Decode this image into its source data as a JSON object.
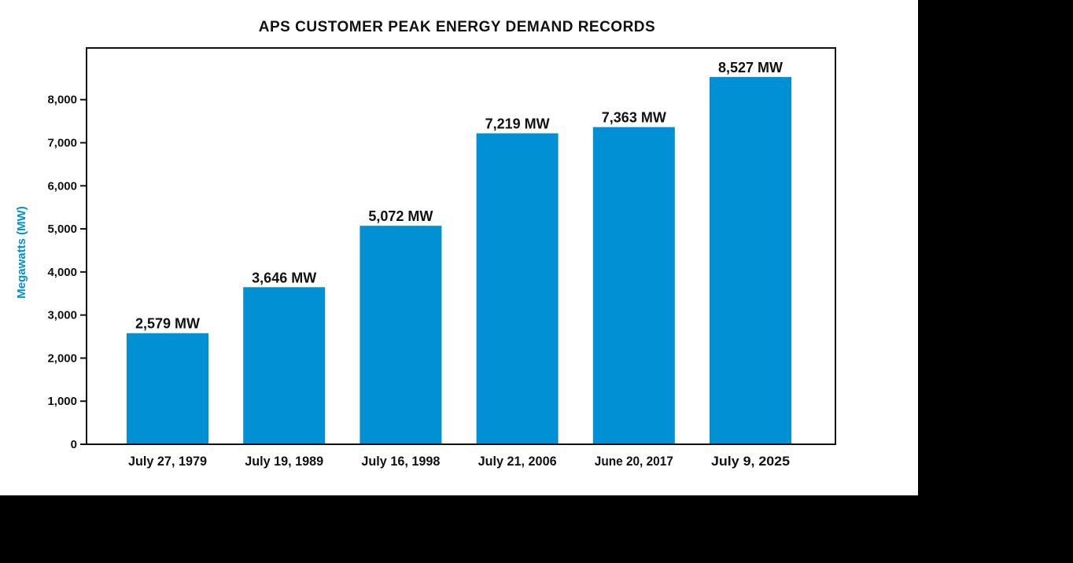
{
  "chart_data": {
    "type": "bar",
    "title": "APS CUSTOMER PEAK ENERGY DEMAND RECORDS",
    "xlabel": "",
    "ylabel": "Megawatts (MW)",
    "categories": [
      "July 27, 1979",
      "July 19, 1989",
      "July 16, 1998",
      "July 21, 2006",
      "June 20, 2017",
      "July 9, 2025"
    ],
    "values": [
      2579,
      3646,
      5072,
      7219,
      7363,
      8527
    ],
    "data_labels": [
      "2,579 MW",
      "3,646 MW",
      "5,072 MW",
      "7,219 MW",
      "7,363 MW",
      "8,527 MW"
    ],
    "yticks": [
      0,
      1000,
      2000,
      3000,
      4000,
      5000,
      6000,
      7000,
      8000
    ],
    "ytick_labels": [
      "0",
      "1,000",
      "2,000",
      "3,000",
      "4,000",
      "5,000",
      "6,000",
      "7,000",
      "8,000"
    ],
    "ylim": [
      0,
      9200
    ],
    "grid": false,
    "legend": "none",
    "colors": {
      "bar": "#0090d3",
      "ylabel": "#0090d3",
      "text": "#111111",
      "frame": "#111111",
      "background": "#ffffff",
      "outer_background": "#000000"
    }
  }
}
